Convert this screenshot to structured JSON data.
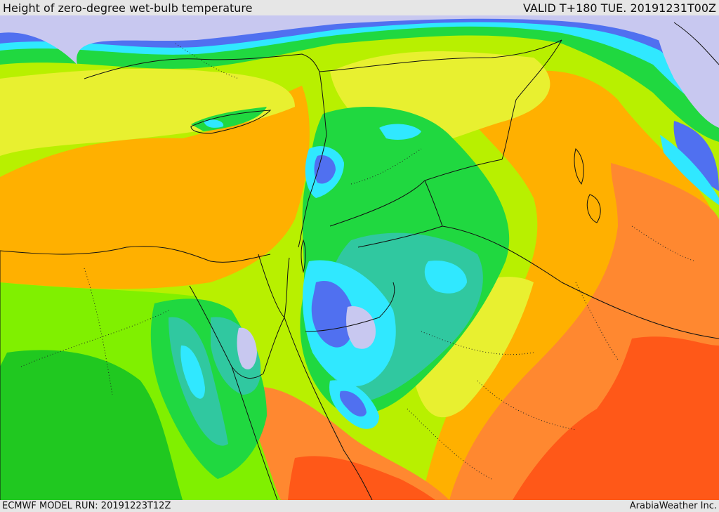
{
  "header": {
    "title": "Height of zero-degree wet-bulb temperature",
    "valid_time": "VALID T+180 TUE. 20191231T00Z"
  },
  "footer": {
    "model_run": "ECMWF MODEL RUN: 20191223T12Z",
    "credit": "ArabiaWeather Inc."
  },
  "map": {
    "field": "zero-degree wet-bulb height",
    "color_scale": [
      "#c8c8f0",
      "#9898f0",
      "#5070f0",
      "#30e8ff",
      "#30c8a0",
      "#20d840",
      "#20c820",
      "#80f000",
      "#b8f000",
      "#e8f030",
      "#ffb000",
      "#ff8830",
      "#ff5818"
    ],
    "boundary_color": "#111111"
  }
}
